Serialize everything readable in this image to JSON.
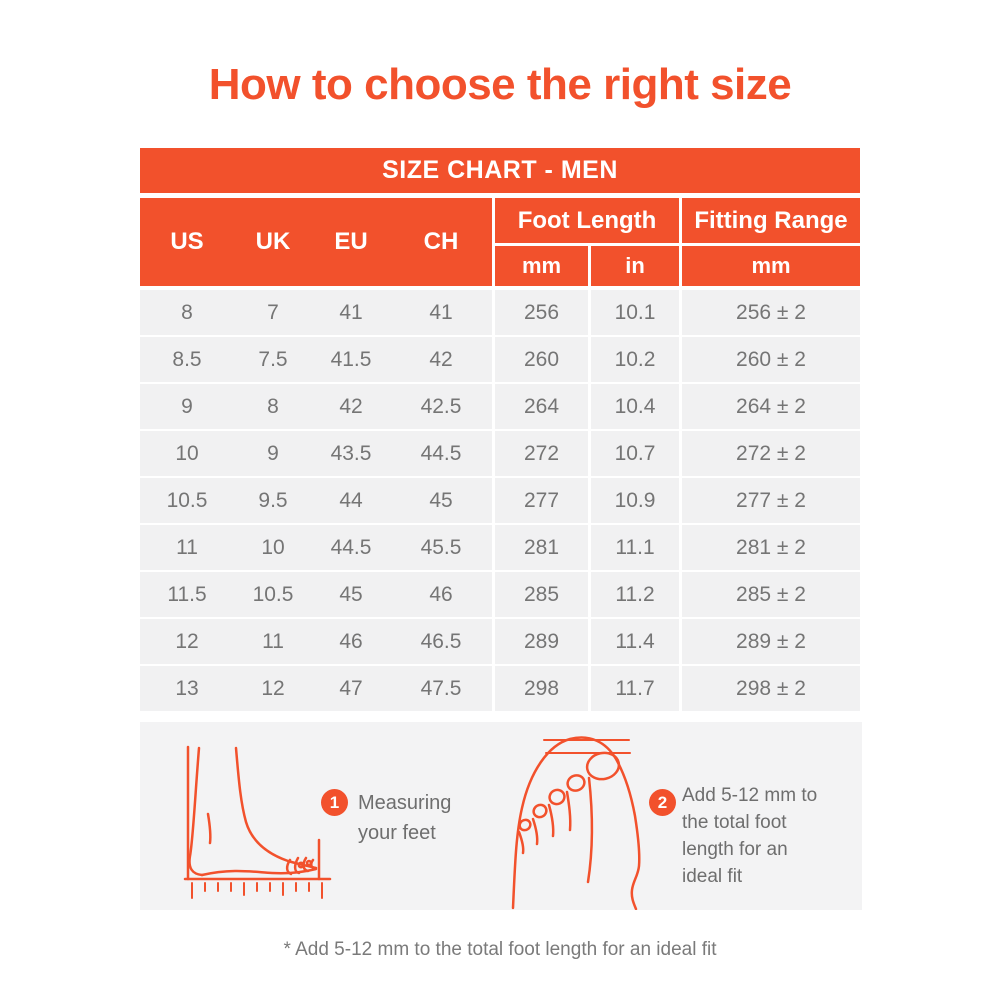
{
  "page": {
    "title": "How to choose the right size",
    "footnote": "* Add 5-12 mm to the total foot length for an ideal fit"
  },
  "colors": {
    "accent": "#F2512C",
    "row_bg": "#F1F1F2",
    "panel_bg": "#F3F3F4",
    "text_gray": "#757575",
    "note_gray": "#7A7A7A",
    "header_text": "#FFFFFF"
  },
  "chart_data": {
    "type": "table",
    "title": "SIZE CHART - MEN",
    "column_groups": [
      {
        "label": "",
        "columns": [
          "US",
          "UK",
          "EU",
          "CH"
        ]
      },
      {
        "label": "Foot Length",
        "columns": [
          "mm",
          "in"
        ]
      },
      {
        "label": "Fitting Range",
        "columns": [
          "mm"
        ]
      }
    ],
    "rows": [
      [
        "8",
        "7",
        "41",
        "41",
        "256",
        "10.1",
        "256 ± 2"
      ],
      [
        "8.5",
        "7.5",
        "41.5",
        "42",
        "260",
        "10.2",
        "260 ± 2"
      ],
      [
        "9",
        "8",
        "42",
        "42.5",
        "264",
        "10.4",
        "264 ± 2"
      ],
      [
        "10",
        "9",
        "43.5",
        "44.5",
        "272",
        "10.7",
        "272 ± 2"
      ],
      [
        "10.5",
        "9.5",
        "44",
        "45",
        "277",
        "10.9",
        "277 ± 2"
      ],
      [
        "11",
        "10",
        "44.5",
        "45.5",
        "281",
        "11.1",
        "281 ± 2"
      ],
      [
        "11.5",
        "10.5",
        "45",
        "46",
        "285",
        "11.2",
        "285 ± 2"
      ],
      [
        "12",
        "11",
        "46",
        "46.5",
        "289",
        "11.4",
        "289 ± 2"
      ],
      [
        "13",
        "12",
        "47",
        "47.5",
        "298",
        "11.7",
        "298 ± 2"
      ]
    ]
  },
  "instructions": {
    "step1": {
      "number": "1",
      "lines": [
        "Measuring",
        "your feet"
      ]
    },
    "step2": {
      "number": "2",
      "lines": [
        "Add 5-12 mm to",
        "the total foot",
        "length for an",
        "ideal fit"
      ]
    }
  }
}
